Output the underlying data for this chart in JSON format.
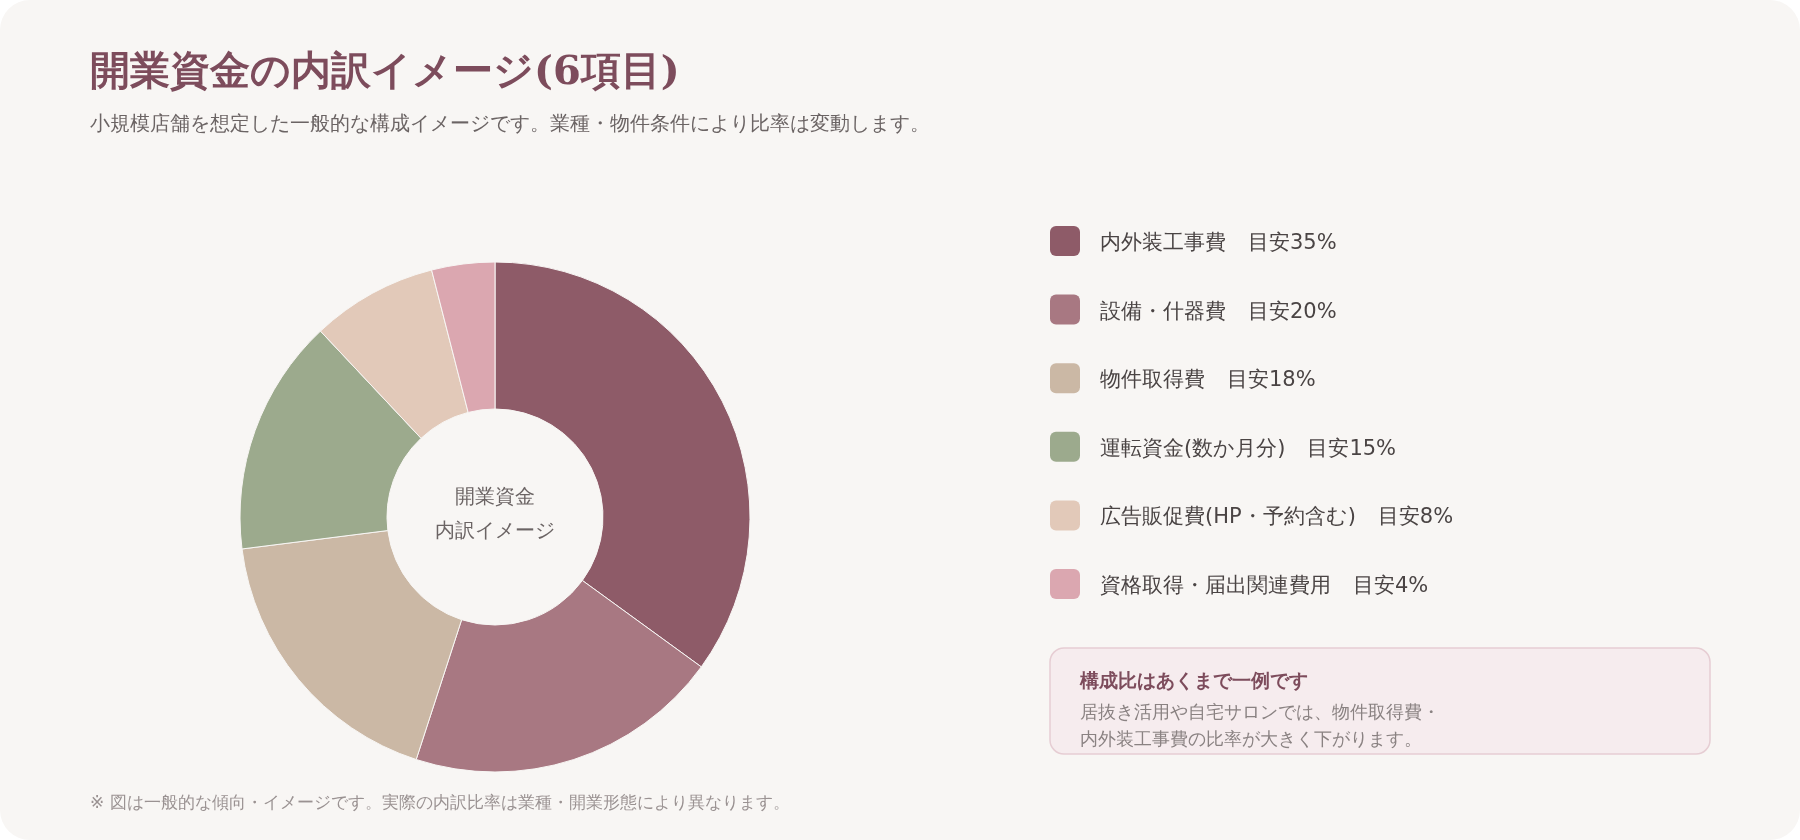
{
  "chart_data": {
    "type": "donut",
    "title": "開業資金の内訳イメージ(6項目)",
    "subtitle": "小規模店舗を想定した一般的な構成イメージです。業種・物件条件により比率は変動します。",
    "categories": [
      "内外装工事費",
      "設備・什器費",
      "物件取得費",
      "運転資金(数か月分)",
      "広告販促費(HP・予約含む)",
      "資格取得・届出関連費用"
    ],
    "values": [
      35,
      20,
      18,
      15,
      8,
      4
    ],
    "value_labels": [
      "目安35%",
      "目安20%",
      "目安18%",
      "目安15%",
      "目安8%",
      "目安4%"
    ],
    "colors": [
      "#8e5b68",
      "#a87882",
      "#cbb8a5",
      "#9caa8d",
      "#e2c9b9",
      "#dba7b0"
    ],
    "legend": "right",
    "annotations": [
      "開業資金",
      "内訳イメージ",
      "構成比はあくまで一例です",
      "居抜き活用や自宅サロンでは、物件取得費・内外装工事費の比率が大きく下がります。",
      "※ 図は一般的な傾向・イメージです。実際の内訳比率は業種・開業形態により異なります。"
    ]
  }
}
